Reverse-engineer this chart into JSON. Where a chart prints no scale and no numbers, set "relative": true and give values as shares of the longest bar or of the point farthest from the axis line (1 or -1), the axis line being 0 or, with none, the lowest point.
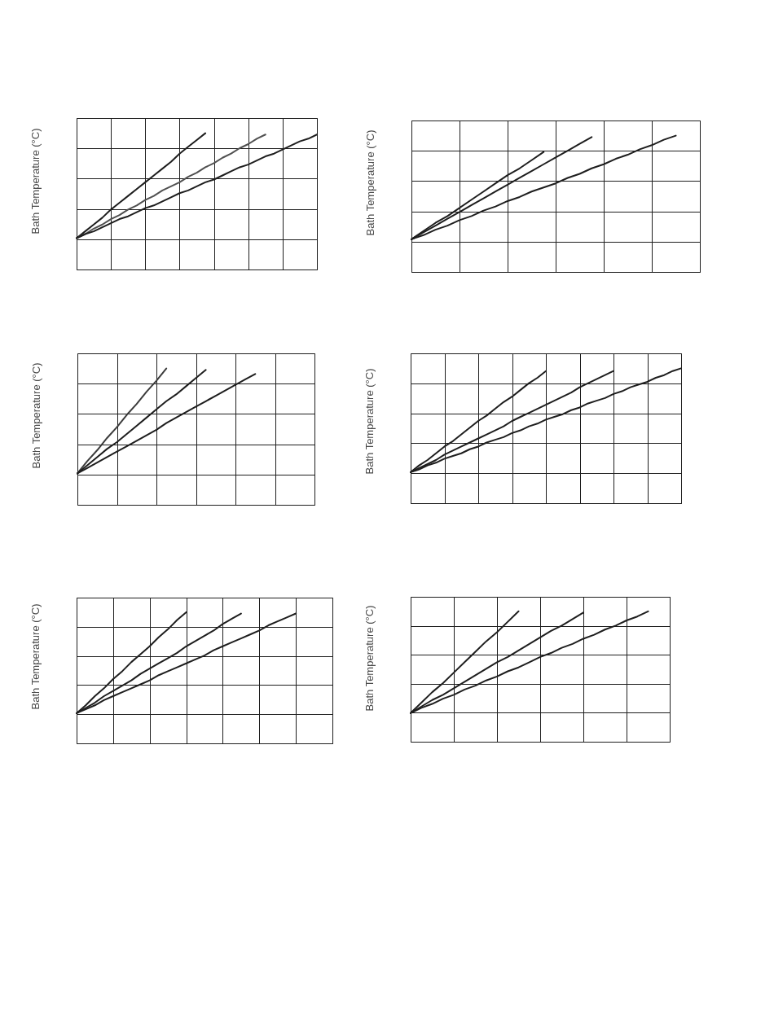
{
  "chart_data": [
    {
      "type": "line",
      "ylabel": "Bath Temperature (°C)",
      "relative": true,
      "grid": true,
      "categories": [
        null,
        null,
        null,
        null,
        null,
        null,
        null,
        null,
        null,
        null,
        null,
        null,
        null,
        null,
        null,
        null,
        null,
        null,
        null,
        null,
        null,
        null,
        null,
        null,
        null,
        null,
        null,
        null,
        null
      ],
      "series": [
        {
          "color": "#1e1e1e",
          "values": [
            0.23,
            0.28,
            0.33,
            0.38,
            0.44,
            0.49,
            0.54,
            0.59,
            0.64,
            0.69,
            0.74,
            0.79,
            0.85,
            0.9,
            0.95,
            1.0,
            null,
            null,
            null,
            null,
            null,
            null,
            null,
            null,
            null,
            null,
            null,
            null,
            null
          ]
        },
        {
          "color": "#505050",
          "values": [
            0.23,
            0.26,
            0.3,
            0.33,
            0.37,
            0.4,
            0.44,
            0.47,
            0.51,
            0.54,
            0.58,
            0.61,
            0.64,
            0.68,
            0.71,
            0.75,
            0.78,
            0.82,
            0.85,
            0.89,
            0.92,
            0.96,
            0.99,
            null,
            null,
            null,
            null,
            null,
            null
          ]
        },
        {
          "color": "#1e1e1e",
          "values": [
            0.23,
            0.26,
            0.28,
            0.31,
            0.34,
            0.37,
            0.39,
            0.42,
            0.45,
            0.47,
            0.5,
            0.53,
            0.56,
            0.58,
            0.61,
            0.64,
            0.66,
            0.69,
            0.72,
            0.75,
            0.77,
            0.8,
            0.83,
            0.85,
            0.88,
            0.91,
            0.94,
            0.96,
            0.99
          ]
        }
      ]
    },
    {
      "type": "line",
      "ylabel": "Bath Temperature (°C)",
      "relative": true,
      "grid": true,
      "categories": [
        null,
        null,
        null,
        null,
        null,
        null,
        null,
        null,
        null,
        null,
        null,
        null,
        null,
        null,
        null,
        null,
        null,
        null,
        null,
        null,
        null,
        null,
        null,
        null,
        null
      ],
      "series": [
        {
          "color": "#1e1e1e",
          "values": [
            0.24,
            0.3,
            0.36,
            0.41,
            0.47,
            0.53,
            0.59,
            0.65,
            0.71,
            0.76,
            0.82,
            0.88,
            null,
            null,
            null,
            null,
            null,
            null,
            null,
            null,
            null,
            null,
            null,
            null,
            null
          ]
        },
        {
          "color": "#1e1e1e",
          "values": [
            0.24,
            0.29,
            0.34,
            0.39,
            0.44,
            0.49,
            0.54,
            0.59,
            0.64,
            0.69,
            0.74,
            0.79,
            0.84,
            0.89,
            0.94,
            0.99,
            null,
            null,
            null,
            null,
            null,
            null,
            null,
            null,
            null
          ]
        },
        {
          "color": "#1e1e1e",
          "values": [
            0.24,
            0.27,
            0.31,
            0.34,
            0.38,
            0.41,
            0.45,
            0.48,
            0.52,
            0.55,
            0.59,
            0.62,
            0.65,
            0.69,
            0.72,
            0.76,
            0.79,
            0.83,
            0.86,
            0.9,
            0.93,
            0.97,
            1.0,
            null,
            null
          ]
        }
      ]
    },
    {
      "type": "line",
      "ylabel": "Bath Temperature (°C)",
      "relative": true,
      "grid": true,
      "categories": [
        null,
        null,
        null,
        null,
        null,
        null,
        null,
        null,
        null,
        null,
        null,
        null,
        null,
        null,
        null,
        null,
        null,
        null,
        null,
        null,
        null,
        null,
        null,
        null,
        null
      ],
      "series": [
        {
          "color": "#3c3c3c",
          "values": [
            0.23,
            0.32,
            0.4,
            0.49,
            0.57,
            0.66,
            0.74,
            0.83,
            0.91,
            1.0,
            null,
            null,
            null,
            null,
            null,
            null,
            null,
            null,
            null,
            null,
            null,
            null,
            null,
            null,
            null
          ]
        },
        {
          "color": "#1e1e1e",
          "values": [
            0.23,
            0.29,
            0.35,
            0.41,
            0.46,
            0.52,
            0.58,
            0.64,
            0.7,
            0.76,
            0.81,
            0.87,
            0.93,
            0.99,
            null,
            null,
            null,
            null,
            null,
            null,
            null,
            null,
            null,
            null,
            null
          ]
        },
        {
          "color": "#1e1e1e",
          "values": [
            0.23,
            0.27,
            0.31,
            0.35,
            0.39,
            0.43,
            0.47,
            0.51,
            0.55,
            0.6,
            0.64,
            0.68,
            0.72,
            0.76,
            0.8,
            0.84,
            0.88,
            0.92,
            0.96,
            null,
            null,
            null,
            null,
            null,
            null
          ]
        }
      ]
    },
    {
      "type": "line",
      "ylabel": "Bath Temperature (°C)",
      "relative": true,
      "grid": true,
      "categories": [
        null,
        null,
        null,
        null,
        null,
        null,
        null,
        null,
        null,
        null,
        null,
        null,
        null,
        null,
        null,
        null,
        null,
        null,
        null,
        null,
        null,
        null,
        null,
        null,
        null,
        null,
        null,
        null,
        null,
        null,
        null,
        null,
        null
      ],
      "series": [
        {
          "color": "#1e1e1e",
          "values": [
            0.23,
            0.28,
            0.32,
            0.37,
            0.42,
            0.46,
            0.51,
            0.56,
            0.61,
            0.65,
            0.7,
            0.75,
            0.79,
            0.84,
            0.89,
            0.93,
            0.98,
            null,
            null,
            null,
            null,
            null,
            null,
            null,
            null,
            null,
            null,
            null,
            null,
            null,
            null,
            null,
            null
          ]
        },
        {
          "color": "#1e1e1e",
          "values": [
            0.23,
            0.26,
            0.29,
            0.32,
            0.36,
            0.39,
            0.42,
            0.45,
            0.48,
            0.51,
            0.54,
            0.57,
            0.61,
            0.64,
            0.67,
            0.7,
            0.73,
            0.76,
            0.79,
            0.82,
            0.86,
            0.89,
            0.92,
            0.95,
            0.98,
            null,
            null,
            null,
            null,
            null,
            null,
            null,
            null
          ]
        },
        {
          "color": "#1e1e1e",
          "values": [
            0.23,
            0.25,
            0.28,
            0.3,
            0.33,
            0.35,
            0.37,
            0.4,
            0.42,
            0.45,
            0.47,
            0.49,
            0.52,
            0.54,
            0.57,
            0.59,
            0.62,
            0.64,
            0.66,
            0.69,
            0.71,
            0.74,
            0.76,
            0.78,
            0.81,
            0.83,
            0.86,
            0.88,
            0.9,
            0.93,
            0.95,
            0.98,
            1.0
          ]
        }
      ]
    },
    {
      "type": "line",
      "ylabel": "Bath Temperature (°C)",
      "relative": true,
      "grid": true,
      "categories": [
        null,
        null,
        null,
        null,
        null,
        null,
        null,
        null,
        null,
        null,
        null,
        null,
        null,
        null,
        null,
        null,
        null,
        null,
        null,
        null,
        null,
        null,
        null,
        null,
        null,
        null,
        null,
        null,
        null
      ],
      "series": [
        {
          "color": "#1e1e1e",
          "values": [
            0.23,
            0.29,
            0.36,
            0.42,
            0.49,
            0.55,
            0.62,
            0.68,
            0.74,
            0.81,
            0.87,
            0.94,
            1.0,
            null,
            null,
            null,
            null,
            null,
            null,
            null,
            null,
            null,
            null,
            null,
            null,
            null,
            null,
            null,
            null
          ]
        },
        {
          "color": "#1e1e1e",
          "values": [
            0.23,
            0.27,
            0.31,
            0.36,
            0.4,
            0.44,
            0.48,
            0.53,
            0.57,
            0.61,
            0.65,
            0.69,
            0.74,
            0.78,
            0.82,
            0.86,
            0.91,
            0.95,
            0.99,
            null,
            null,
            null,
            null,
            null,
            null,
            null,
            null,
            null,
            null
          ]
        },
        {
          "color": "#1e1e1e",
          "values": [
            0.23,
            0.26,
            0.29,
            0.33,
            0.36,
            0.39,
            0.42,
            0.45,
            0.48,
            0.52,
            0.55,
            0.58,
            0.61,
            0.64,
            0.67,
            0.71,
            0.74,
            0.77,
            0.8,
            0.83,
            0.86,
            0.9,
            0.93,
            0.96,
            0.99,
            null,
            null,
            null,
            null
          ]
        }
      ]
    },
    {
      "type": "line",
      "ylabel": "Bath Temperature (°C)",
      "relative": true,
      "grid": true,
      "categories": [
        null,
        null,
        null,
        null,
        null,
        null,
        null,
        null,
        null,
        null,
        null,
        null,
        null,
        null,
        null,
        null,
        null,
        null,
        null,
        null,
        null,
        null,
        null,
        null,
        null
      ],
      "series": [
        {
          "color": "#1e1e1e",
          "values": [
            0.22,
            0.3,
            0.38,
            0.45,
            0.53,
            0.61,
            0.69,
            0.77,
            0.84,
            0.92,
            1.0,
            null,
            null,
            null,
            null,
            null,
            null,
            null,
            null,
            null,
            null,
            null,
            null,
            null,
            null
          ]
        },
        {
          "color": "#1e1e1e",
          "values": [
            0.22,
            0.27,
            0.32,
            0.36,
            0.41,
            0.46,
            0.51,
            0.56,
            0.61,
            0.65,
            0.7,
            0.75,
            0.8,
            0.85,
            0.89,
            0.94,
            0.99,
            null,
            null,
            null,
            null,
            null,
            null,
            null,
            null
          ]
        },
        {
          "color": "#1e1e1e",
          "values": [
            0.22,
            0.26,
            0.29,
            0.33,
            0.36,
            0.4,
            0.43,
            0.47,
            0.5,
            0.54,
            0.57,
            0.61,
            0.65,
            0.68,
            0.72,
            0.75,
            0.79,
            0.82,
            0.86,
            0.89,
            0.93,
            0.96,
            1.0,
            null,
            null
          ]
        }
      ]
    }
  ]
}
